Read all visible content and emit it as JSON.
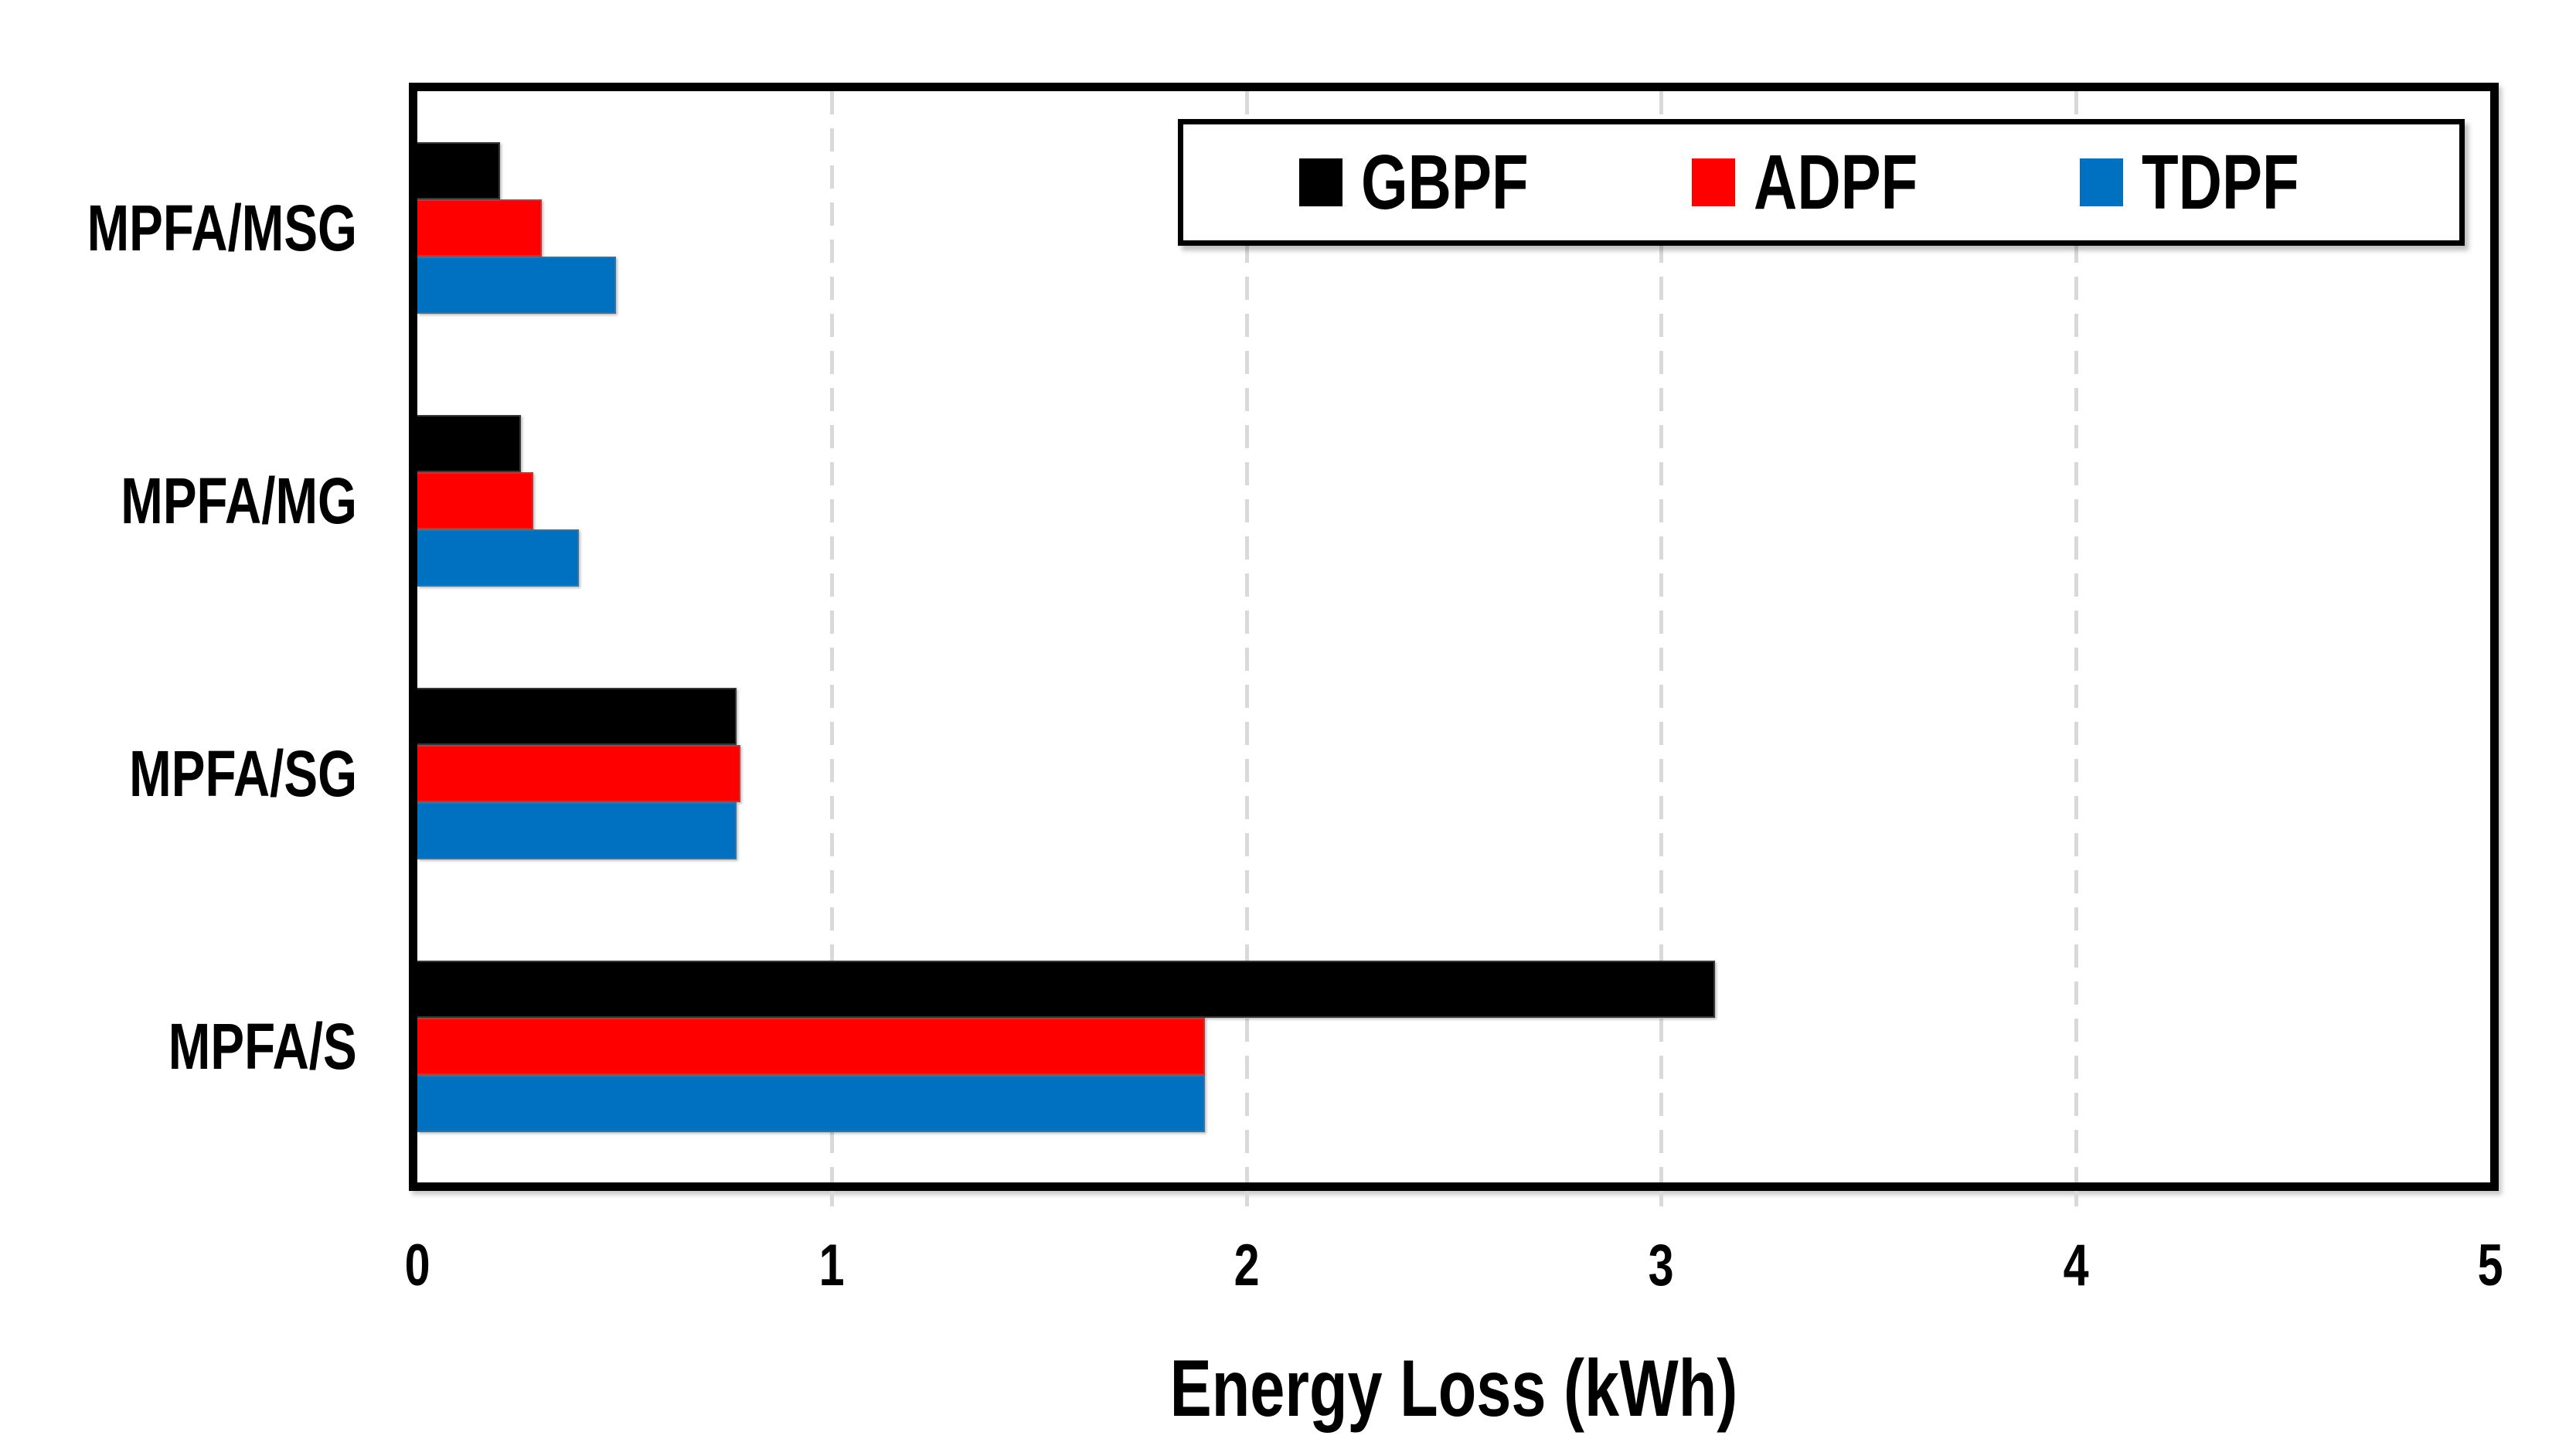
{
  "chart_data": {
    "type": "bar",
    "orientation": "horizontal",
    "title": "",
    "xlabel": "Energy Loss (kWh)",
    "ylabel": "",
    "categories": [
      "MPFA/MSG",
      "MPFA/MG",
      "MPFA/SG",
      "MPFA/S"
    ],
    "series": [
      {
        "name": "GBPF",
        "color": "#000000",
        "values": [
          0.2,
          0.25,
          0.77,
          3.13
        ]
      },
      {
        "name": "ADPF",
        "color": "#FF0000",
        "values": [
          0.3,
          0.28,
          0.78,
          1.9
        ]
      },
      {
        "name": "TDPF",
        "color": "#0070C0",
        "values": [
          0.48,
          0.39,
          0.77,
          1.9
        ]
      }
    ],
    "xlim": [
      0,
      5
    ],
    "xticks": [
      "0",
      "1",
      "2",
      "3",
      "4",
      "5"
    ],
    "grid": "vertical dashed gridlines at integer values",
    "gridline_color": "#D9D9D9",
    "legend_position": "top-right",
    "plot_border_color": "#000000",
    "background_color": "#FFFFFF"
  }
}
